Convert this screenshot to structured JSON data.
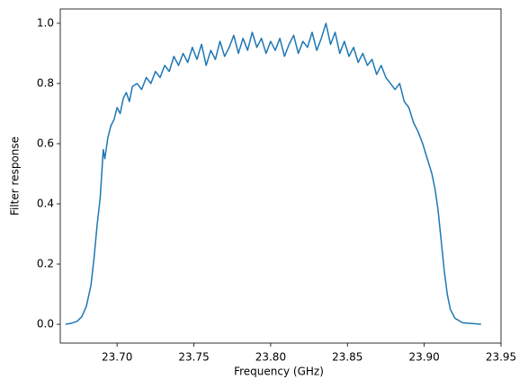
{
  "chart_data": {
    "type": "line",
    "xlabel": "Frequency (GHz)",
    "ylabel": "Filter response",
    "xlim": [
      23.663,
      23.95
    ],
    "ylim": [
      -0.0625,
      1.0475
    ],
    "xticks": [
      {
        "value": 23.7,
        "label": "23.70"
      },
      23.75,
      {
        "value": 23.8,
        "label": "23.80"
      },
      23.85,
      {
        "value": 23.9,
        "label": "23.90"
      },
      23.95
    ],
    "yticks": [
      {
        "value": 0,
        "label": "0.0"
      },
      0.2,
      0.4,
      0.6,
      0.8,
      {
        "value": 1,
        "label": "1.0"
      }
    ],
    "grid": false,
    "series": [
      {
        "color": "#1f77b4",
        "x": [
          23.6665,
          23.67,
          23.674,
          23.677,
          23.68,
          23.683,
          23.685,
          23.687,
          23.689,
          23.69,
          23.691,
          23.692,
          23.694,
          23.696,
          23.698,
          23.7,
          23.702,
          23.704,
          23.706,
          23.708,
          23.71,
          23.713,
          23.716,
          23.719,
          23.722,
          23.725,
          23.728,
          23.731,
          23.734,
          23.737,
          23.74,
          23.743,
          23.746,
          23.749,
          23.752,
          23.755,
          23.758,
          23.761,
          23.764,
          23.767,
          23.77,
          23.773,
          23.776,
          23.779,
          23.782,
          23.785,
          23.788,
          23.791,
          23.794,
          23.797,
          23.8,
          23.803,
          23.806,
          23.809,
          23.812,
          23.815,
          23.818,
          23.821,
          23.824,
          23.827,
          23.83,
          23.833,
          23.836,
          23.839,
          23.842,
          23.845,
          23.848,
          23.851,
          23.854,
          23.857,
          23.86,
          23.863,
          23.866,
          23.869,
          23.872,
          23.875,
          23.878,
          23.881,
          23.884,
          23.887,
          23.89,
          23.893,
          23.896,
          23.899,
          23.902,
          23.905,
          23.907,
          23.909,
          23.911,
          23.913,
          23.915,
          23.917,
          23.92,
          23.925,
          23.937
        ],
        "values": [
          0.0,
          0.003,
          0.01,
          0.025,
          0.06,
          0.13,
          0.22,
          0.33,
          0.42,
          0.5,
          0.58,
          0.55,
          0.62,
          0.66,
          0.68,
          0.72,
          0.7,
          0.75,
          0.77,
          0.74,
          0.79,
          0.8,
          0.78,
          0.82,
          0.8,
          0.84,
          0.82,
          0.86,
          0.84,
          0.89,
          0.86,
          0.9,
          0.87,
          0.92,
          0.88,
          0.93,
          0.86,
          0.91,
          0.88,
          0.94,
          0.89,
          0.92,
          0.96,
          0.9,
          0.95,
          0.91,
          0.97,
          0.92,
          0.95,
          0.9,
          0.94,
          0.91,
          0.95,
          0.89,
          0.93,
          0.96,
          0.9,
          0.94,
          0.92,
          0.97,
          0.91,
          0.95,
          1.0,
          0.93,
          0.97,
          0.9,
          0.94,
          0.89,
          0.92,
          0.87,
          0.9,
          0.86,
          0.88,
          0.83,
          0.86,
          0.82,
          0.8,
          0.78,
          0.8,
          0.74,
          0.72,
          0.67,
          0.64,
          0.6,
          0.55,
          0.5,
          0.45,
          0.38,
          0.28,
          0.18,
          0.1,
          0.05,
          0.02,
          0.005,
          0.0
        ]
      }
    ]
  }
}
